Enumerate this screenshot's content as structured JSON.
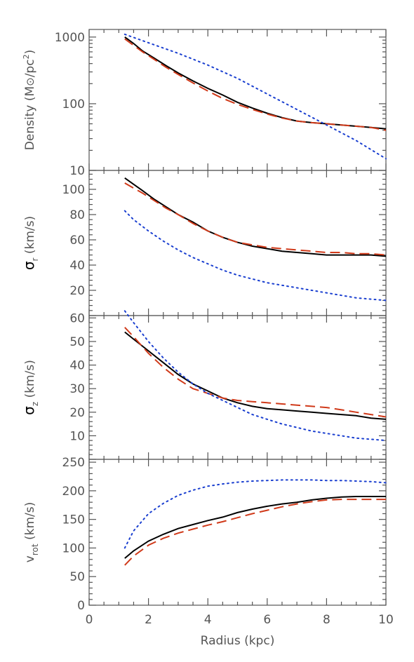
{
  "chart_data": [
    {
      "type": "line",
      "ylabel": "Density (M⊙/pc²)",
      "ylabel_parts": [
        "Density (M",
        "⊙",
        "/pc",
        "2",
        ")"
      ],
      "yscale": "log",
      "ylim": [
        10,
        1300
      ],
      "xlim": [
        0,
        10
      ],
      "ytick_labels": [
        {
          "v": 1000,
          "t": "1000"
        },
        {
          "v": 100,
          "t": "100"
        },
        {
          "v": 10,
          "t": "10"
        }
      ],
      "show_xtick_labels": false,
      "series": [
        {
          "style": "solid",
          "color": "#000000",
          "x": [
            1.2,
            1.5,
            1.8,
            2.2,
            2.6,
            3.0,
            3.5,
            4.0,
            4.5,
            5.0,
            5.5,
            6.0,
            6.5,
            7.0,
            7.5,
            8.0,
            8.5,
            9.0,
            9.5,
            10.0
          ],
          "y": [
            1000,
            800,
            620,
            480,
            370,
            290,
            220,
            170,
            135,
            105,
            86,
            72,
            62,
            55,
            52,
            50,
            48,
            46,
            44,
            42
          ]
        },
        {
          "style": "dashed",
          "color": "#d03a1a",
          "x": [
            1.2,
            1.5,
            1.8,
            2.2,
            2.6,
            3.0,
            3.5,
            4.0,
            4.5,
            5.0,
            5.5,
            6.0,
            6.5,
            7.0,
            7.5,
            8.0,
            8.5,
            9.0,
            9.5,
            10.0
          ],
          "y": [
            940,
            750,
            600,
            460,
            350,
            275,
            205,
            155,
            120,
            98,
            82,
            70,
            61,
            55,
            52,
            50,
            48,
            46,
            44,
            40
          ]
        },
        {
          "style": "dotted",
          "color": "#1a3fd0",
          "x": [
            1.2,
            2.0,
            3.0,
            4.0,
            5.0,
            6.0,
            7.0,
            8.0,
            9.0,
            10.0
          ],
          "y": [
            1100,
            820,
            570,
            380,
            240,
            140,
            82,
            48,
            28,
            15
          ]
        }
      ]
    },
    {
      "type": "line",
      "ylabel_parts": [
        "σ",
        "r",
        " (km/s)"
      ],
      "yscale": "linear",
      "ylim": [
        0,
        115
      ],
      "xlim": [
        0,
        10
      ],
      "ytick_labels": [
        {
          "v": 100,
          "t": "100"
        },
        {
          "v": 80,
          "t": "80"
        },
        {
          "v": 60,
          "t": "60"
        },
        {
          "v": 40,
          "t": "40"
        },
        {
          "v": 20,
          "t": "20"
        }
      ],
      "show_xtick_labels": false,
      "series": [
        {
          "style": "solid",
          "color": "#000000",
          "x": [
            1.2,
            1.5,
            1.8,
            2.2,
            2.6,
            3.0,
            3.5,
            4.0,
            4.5,
            5.0,
            5.5,
            6.0,
            6.5,
            7.0,
            7.5,
            8.0,
            8.5,
            9.0,
            9.5,
            10.0
          ],
          "y": [
            109,
            104,
            99,
            92,
            86,
            80,
            74,
            67,
            62,
            58,
            55,
            53,
            51,
            50,
            49,
            48,
            48,
            48,
            48,
            47
          ]
        },
        {
          "style": "dashed",
          "color": "#d03a1a",
          "x": [
            1.2,
            1.5,
            1.8,
            2.2,
            2.6,
            3.0,
            3.5,
            4.0,
            4.5,
            5.0,
            5.5,
            6.0,
            6.5,
            7.0,
            7.5,
            8.0,
            8.5,
            9.0,
            9.5,
            10.0
          ],
          "y": [
            105,
            101,
            97,
            91,
            85,
            80,
            73,
            67,
            62,
            58,
            56,
            54,
            53,
            52,
            51,
            50,
            50,
            49,
            49,
            48
          ]
        },
        {
          "style": "dotted",
          "color": "#1a3fd0",
          "x": [
            1.2,
            1.5,
            2.0,
            2.5,
            3.0,
            3.5,
            4.0,
            4.5,
            5.0,
            5.5,
            6.0,
            6.5,
            7.0,
            7.5,
            8.0,
            8.5,
            9.0,
            9.5,
            10.0
          ],
          "y": [
            83,
            76,
            67,
            59,
            52,
            46,
            41,
            36,
            32,
            29,
            26,
            24,
            22,
            20,
            18,
            16,
            14,
            13,
            12
          ]
        }
      ]
    },
    {
      "type": "line",
      "ylabel_parts": [
        "σ",
        "z",
        " (km/s)"
      ],
      "yscale": "linear",
      "ylim": [
        0,
        61
      ],
      "xlim": [
        0,
        10
      ],
      "ytick_labels": [
        {
          "v": 60,
          "t": "60"
        },
        {
          "v": 50,
          "t": "50"
        },
        {
          "v": 40,
          "t": "40"
        },
        {
          "v": 30,
          "t": "30"
        },
        {
          "v": 20,
          "t": "20"
        },
        {
          "v": 10,
          "t": "10"
        }
      ],
      "show_xtick_labels": false,
      "series": [
        {
          "style": "solid",
          "color": "#000000",
          "x": [
            1.2,
            1.5,
            2.0,
            2.5,
            3.0,
            3.5,
            4.0,
            4.5,
            5.0,
            5.5,
            6.0,
            6.5,
            7.0,
            7.5,
            8.0,
            8.5,
            9.0,
            9.5,
            10.0
          ],
          "y": [
            54,
            51,
            46,
            41,
            36,
            32,
            29,
            26,
            24,
            22.5,
            21.5,
            21,
            20.5,
            20,
            19.5,
            19,
            18.5,
            17.5,
            17
          ]
        },
        {
          "style": "dashed",
          "color": "#d03a1a",
          "x": [
            1.2,
            1.5,
            2.0,
            2.5,
            3.0,
            3.5,
            4.0,
            4.5,
            5.0,
            5.5,
            6.0,
            6.5,
            7.0,
            7.5,
            8.0,
            8.5,
            9.0,
            9.5,
            10.0
          ],
          "y": [
            56,
            52,
            45,
            39,
            34,
            30,
            28,
            26,
            25,
            24.5,
            24,
            23.5,
            23,
            22.5,
            22,
            21,
            20,
            19,
            18
          ]
        },
        {
          "style": "dotted",
          "color": "#1a3fd0",
          "x": [
            1.2,
            1.5,
            2.0,
            2.5,
            3.0,
            3.5,
            4.0,
            4.5,
            5.0,
            5.5,
            6.0,
            6.5,
            7.0,
            7.5,
            8.0,
            8.5,
            9.0,
            9.5,
            10.0
          ],
          "y": [
            63,
            58,
            50,
            43,
            37,
            32,
            28,
            25,
            22,
            19,
            17,
            15,
            13.5,
            12,
            11,
            10,
            9,
            8.5,
            8
          ]
        }
      ]
    },
    {
      "type": "line",
      "ylabel_parts": [
        "v",
        "rot",
        " (km/s)"
      ],
      "yscale": "linear",
      "ylim": [
        0,
        255
      ],
      "xlim": [
        0,
        10
      ],
      "xlabel": "Radius (kpc)",
      "xtick_labels": [
        {
          "v": 0,
          "t": "0"
        },
        {
          "v": 2,
          "t": "2"
        },
        {
          "v": 4,
          "t": "4"
        },
        {
          "v": 6,
          "t": "6"
        },
        {
          "v": 8,
          "t": "8"
        },
        {
          "v": 10,
          "t": "10"
        }
      ],
      "ytick_labels": [
        {
          "v": 250,
          "t": "250"
        },
        {
          "v": 200,
          "t": "200"
        },
        {
          "v": 150,
          "t": "150"
        },
        {
          "v": 100,
          "t": "100"
        },
        {
          "v": 50,
          "t": "50"
        },
        {
          "v": 0,
          "t": "0"
        }
      ],
      "show_xtick_labels": true,
      "series": [
        {
          "style": "solid",
          "color": "#000000",
          "x": [
            1.2,
            1.5,
            2.0,
            2.5,
            3.0,
            3.5,
            4.0,
            4.5,
            5.0,
            5.5,
            6.0,
            6.5,
            7.0,
            7.5,
            8.0,
            8.5,
            9.0,
            9.5,
            10.0
          ],
          "y": [
            82,
            95,
            112,
            124,
            134,
            141,
            148,
            154,
            162,
            168,
            173,
            177,
            180,
            184,
            187,
            189,
            190,
            190,
            190
          ]
        },
        {
          "style": "dashed",
          "color": "#d03a1a",
          "x": [
            1.2,
            1.5,
            2.0,
            2.5,
            3.0,
            3.5,
            4.0,
            4.5,
            5.0,
            5.5,
            6.0,
            6.5,
            7.0,
            7.5,
            8.0,
            8.5,
            9.0,
            9.5,
            10.0
          ],
          "y": [
            70,
            86,
            105,
            117,
            126,
            133,
            140,
            146,
            153,
            160,
            166,
            172,
            177,
            181,
            184,
            185,
            185,
            185,
            185
          ]
        },
        {
          "style": "dotted",
          "color": "#1a3fd0",
          "x": [
            1.2,
            1.5,
            2.0,
            2.5,
            3.0,
            3.5,
            4.0,
            4.5,
            5.0,
            5.5,
            6.0,
            6.5,
            7.0,
            7.5,
            8.0,
            8.5,
            9.0,
            9.5,
            10.0
          ],
          "y": [
            100,
            130,
            160,
            178,
            192,
            201,
            208,
            212,
            215,
            217,
            218,
            219,
            219,
            219,
            218,
            218,
            217,
            216,
            214
          ]
        }
      ]
    }
  ]
}
